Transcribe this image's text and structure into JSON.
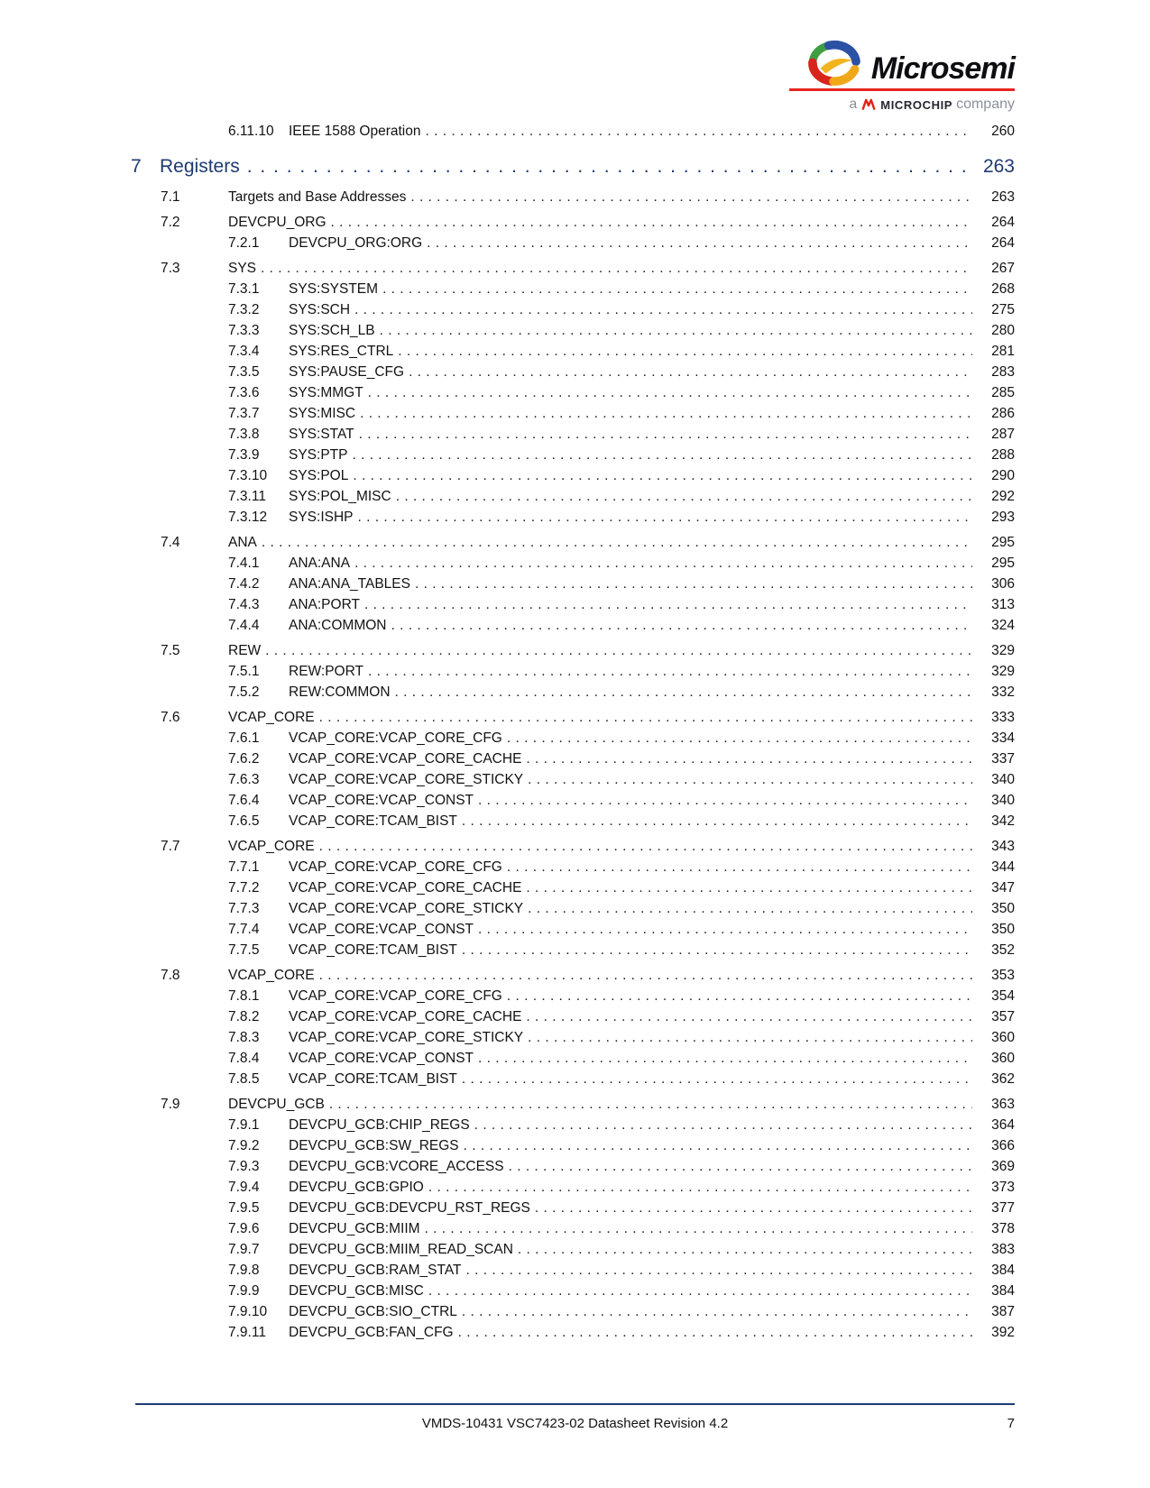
{
  "colors": {
    "accent_navy": "#1E3A72",
    "logo_red": "#E8251F",
    "microchip_red": "#E2231A",
    "tagline_gray": "#8C9099",
    "body_text": "#121212"
  },
  "logo": {
    "brand": "Microsemi",
    "tagline_prefix": "a",
    "tagline_brand": "MICROCHIP",
    "tagline_suffix": "company",
    "icon": "microsemi-swoosh-globe"
  },
  "footer": {
    "doc_ref": "VMDS-10431 VSC7423-02 Datasheet Revision 4.2",
    "page_number": "7"
  },
  "toc": {
    "rows": [
      {
        "level": "l2",
        "number": "6.11.10",
        "title": "IEEE 1588 Operation",
        "page": "260"
      },
      {
        "level": "chapter",
        "number": "7",
        "title": "Registers",
        "page": "263"
      },
      {
        "level": "l1",
        "number": "7.1",
        "title": "Targets and Base Addresses",
        "page": "263"
      },
      {
        "level": "l1",
        "number": "7.2",
        "title": "DEVCPU_ORG",
        "page": "264"
      },
      {
        "level": "l2",
        "number": "7.2.1",
        "title": "DEVCPU_ORG:ORG",
        "page": "264"
      },
      {
        "level": "l1",
        "number": "7.3",
        "title": "SYS",
        "page": "267"
      },
      {
        "level": "l2",
        "number": "7.3.1",
        "title": "SYS:SYSTEM",
        "page": "268"
      },
      {
        "level": "l2",
        "number": "7.3.2",
        "title": "SYS:SCH",
        "page": "275"
      },
      {
        "level": "l2",
        "number": "7.3.3",
        "title": "SYS:SCH_LB",
        "page": "280"
      },
      {
        "level": "l2",
        "number": "7.3.4",
        "title": "SYS:RES_CTRL",
        "page": "281"
      },
      {
        "level": "l2",
        "number": "7.3.5",
        "title": "SYS:PAUSE_CFG",
        "page": "283"
      },
      {
        "level": "l2",
        "number": "7.3.6",
        "title": "SYS:MMGT",
        "page": "285"
      },
      {
        "level": "l2",
        "number": "7.3.7",
        "title": "SYS:MISC",
        "page": "286"
      },
      {
        "level": "l2",
        "number": "7.3.8",
        "title": "SYS:STAT",
        "page": "287"
      },
      {
        "level": "l2",
        "number": "7.3.9",
        "title": "SYS:PTP",
        "page": "288"
      },
      {
        "level": "l2",
        "number": "7.3.10",
        "title": "SYS:POL",
        "page": "290"
      },
      {
        "level": "l2",
        "number": "7.3.11",
        "title": "SYS:POL_MISC",
        "page": "292"
      },
      {
        "level": "l2",
        "number": "7.3.12",
        "title": "SYS:ISHP",
        "page": "293"
      },
      {
        "level": "l1",
        "number": "7.4",
        "title": "ANA",
        "page": "295"
      },
      {
        "level": "l2",
        "number": "7.4.1",
        "title": "ANA:ANA",
        "page": "295"
      },
      {
        "level": "l2",
        "number": "7.4.2",
        "title": "ANA:ANA_TABLES",
        "page": "306"
      },
      {
        "level": "l2",
        "number": "7.4.3",
        "title": "ANA:PORT",
        "page": "313"
      },
      {
        "level": "l2",
        "number": "7.4.4",
        "title": "ANA:COMMON",
        "page": "324"
      },
      {
        "level": "l1",
        "number": "7.5",
        "title": "REW",
        "page": "329"
      },
      {
        "level": "l2",
        "number": "7.5.1",
        "title": "REW:PORT",
        "page": "329"
      },
      {
        "level": "l2",
        "number": "7.5.2",
        "title": "REW:COMMON",
        "page": "332"
      },
      {
        "level": "l1",
        "number": "7.6",
        "title": "VCAP_CORE",
        "page": "333"
      },
      {
        "level": "l2",
        "number": "7.6.1",
        "title": "VCAP_CORE:VCAP_CORE_CFG",
        "page": "334"
      },
      {
        "level": "l2",
        "number": "7.6.2",
        "title": "VCAP_CORE:VCAP_CORE_CACHE",
        "page": "337"
      },
      {
        "level": "l2",
        "number": "7.6.3",
        "title": "VCAP_CORE:VCAP_CORE_STICKY",
        "page": "340"
      },
      {
        "level": "l2",
        "number": "7.6.4",
        "title": "VCAP_CORE:VCAP_CONST",
        "page": "340"
      },
      {
        "level": "l2",
        "number": "7.6.5",
        "title": "VCAP_CORE:TCAM_BIST",
        "page": "342"
      },
      {
        "level": "l1",
        "number": "7.7",
        "title": "VCAP_CORE",
        "page": "343"
      },
      {
        "level": "l2",
        "number": "7.7.1",
        "title": "VCAP_CORE:VCAP_CORE_CFG",
        "page": "344"
      },
      {
        "level": "l2",
        "number": "7.7.2",
        "title": "VCAP_CORE:VCAP_CORE_CACHE",
        "page": "347"
      },
      {
        "level": "l2",
        "number": "7.7.3",
        "title": "VCAP_CORE:VCAP_CORE_STICKY",
        "page": "350"
      },
      {
        "level": "l2",
        "number": "7.7.4",
        "title": "VCAP_CORE:VCAP_CONST",
        "page": "350"
      },
      {
        "level": "l2",
        "number": "7.7.5",
        "title": "VCAP_CORE:TCAM_BIST",
        "page": "352"
      },
      {
        "level": "l1",
        "number": "7.8",
        "title": "VCAP_CORE",
        "page": "353"
      },
      {
        "level": "l2",
        "number": "7.8.1",
        "title": "VCAP_CORE:VCAP_CORE_CFG",
        "page": "354"
      },
      {
        "level": "l2",
        "number": "7.8.2",
        "title": "VCAP_CORE:VCAP_CORE_CACHE",
        "page": "357"
      },
      {
        "level": "l2",
        "number": "7.8.3",
        "title": "VCAP_CORE:VCAP_CORE_STICKY",
        "page": "360"
      },
      {
        "level": "l2",
        "number": "7.8.4",
        "title": "VCAP_CORE:VCAP_CONST",
        "page": "360"
      },
      {
        "level": "l2",
        "number": "7.8.5",
        "title": "VCAP_CORE:TCAM_BIST",
        "page": "362"
      },
      {
        "level": "l1",
        "number": "7.9",
        "title": "DEVCPU_GCB",
        "page": "363"
      },
      {
        "level": "l2",
        "number": "7.9.1",
        "title": "DEVCPU_GCB:CHIP_REGS",
        "page": "364"
      },
      {
        "level": "l2",
        "number": "7.9.2",
        "title": "DEVCPU_GCB:SW_REGS",
        "page": "366"
      },
      {
        "level": "l2",
        "number": "7.9.3",
        "title": "DEVCPU_GCB:VCORE_ACCESS",
        "page": "369"
      },
      {
        "level": "l2",
        "number": "7.9.4",
        "title": "DEVCPU_GCB:GPIO",
        "page": "373"
      },
      {
        "level": "l2",
        "number": "7.9.5",
        "title": "DEVCPU_GCB:DEVCPU_RST_REGS",
        "page": "377"
      },
      {
        "level": "l2",
        "number": "7.9.6",
        "title": "DEVCPU_GCB:MIIM",
        "page": "378"
      },
      {
        "level": "l2",
        "number": "7.9.7",
        "title": "DEVCPU_GCB:MIIM_READ_SCAN",
        "page": "383"
      },
      {
        "level": "l2",
        "number": "7.9.8",
        "title": "DEVCPU_GCB:RAM_STAT",
        "page": "384"
      },
      {
        "level": "l2",
        "number": "7.9.9",
        "title": "DEVCPU_GCB:MISC",
        "page": "384"
      },
      {
        "level": "l2",
        "number": "7.9.10",
        "title": "DEVCPU_GCB:SIO_CTRL",
        "page": "387"
      },
      {
        "level": "l2",
        "number": "7.9.11",
        "title": "DEVCPU_GCB:FAN_CFG",
        "page": "392"
      }
    ]
  }
}
